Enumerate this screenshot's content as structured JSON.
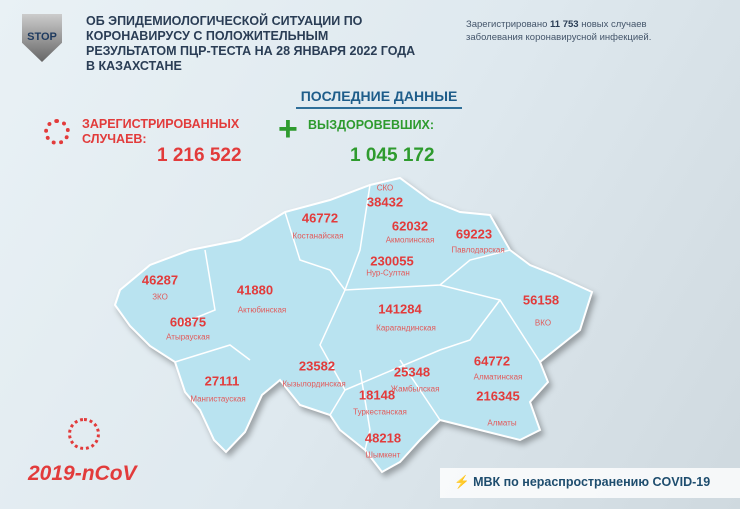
{
  "header": {
    "title": "ОБ ЭПИДЕМИОЛОГИЧЕСКОЙ СИТУАЦИИ ПО КОРОНАВИРУСУ С ПОЛОЖИТЕЛЬНЫМ РЕЗУЛЬТАТОМ ПЦР-ТЕСТА НА 28 ЯНВАРЯ 2022 ГОДА В КАЗАХСТАНЕ",
    "logo_text": "STOP",
    "note_prefix": "Зарегистрировано",
    "note_count": "11 753",
    "note_suffix": "новых случаев заболевания коронавирусной инфекцией."
  },
  "latest": {
    "heading": "ПОСЛЕДНИЕ ДАННЫЕ",
    "registered_label": "ЗАРЕГИСТРИРОВАННЫХ СЛУЧАЕВ:",
    "registered_value": "1 216 522",
    "recovered_label": "ВЫЗДОРОВЕВШИХ:",
    "recovered_value": "1 045 172"
  },
  "regions": [
    {
      "name": "СКО",
      "value": "38432"
    },
    {
      "name": "Костанайская",
      "value": "46772"
    },
    {
      "name": "Акмолинская",
      "value": "62032"
    },
    {
      "name": "Павлодарская",
      "value": "69223"
    },
    {
      "name": "Нур-Султан",
      "value": "230055"
    },
    {
      "name": "ЗКО",
      "value": "46287"
    },
    {
      "name": "Актюбинская",
      "value": "41880"
    },
    {
      "name": "Карагандинская",
      "value": "141284"
    },
    {
      "name": "ВКО",
      "value": "56158"
    },
    {
      "name": "Атырауская",
      "value": "60875"
    },
    {
      "name": "Кызылординская",
      "value": "23582"
    },
    {
      "name": "Алматинская",
      "value": "64772"
    },
    {
      "name": "Жамбылская",
      "value": "25348"
    },
    {
      "name": "Мангистауская",
      "value": "27111"
    },
    {
      "name": "Туркестанская",
      "value": "18148"
    },
    {
      "name": "Алматы",
      "value": "216345"
    },
    {
      "name": "Шымкент",
      "value": "48218"
    }
  ],
  "footer": {
    "virus_label": "2019-nCoV",
    "mvk": "МВК по нераспространению COVID-19"
  },
  "colors": {
    "map": "#b9e3f0",
    "red": "#e23b3b",
    "green": "#2e9b2e"
  }
}
